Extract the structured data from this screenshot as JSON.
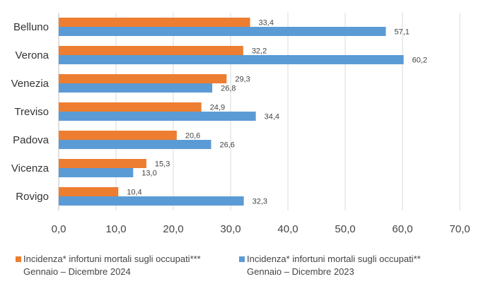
{
  "chart_data": {
    "type": "bar",
    "orientation": "horizontal",
    "categories": [
      "Belluno",
      "Verona",
      "Venezia",
      "Treviso",
      "Padova",
      "Vicenza",
      "Rovigo"
    ],
    "series": [
      {
        "name": "Incidenza* infortuni mortali  sugli occupati***",
        "period": "Gennaio – Dicembre 2024",
        "color": "#ED7D31",
        "values": [
          33.4,
          32.2,
          29.3,
          24.9,
          20.6,
          15.3,
          10.4
        ],
        "labels": [
          "33,4",
          "32,2",
          "29,3",
          "24,9",
          "20,6",
          "15,3",
          "10,4"
        ]
      },
      {
        "name": "Incidenza* infortuni mortali  sugli occupati**",
        "period": "Gennaio – Dicembre 2023",
        "color": "#5B9BD5",
        "values": [
          57.1,
          60.2,
          26.8,
          34.4,
          26.6,
          13.0,
          32.3
        ],
        "labels": [
          "57,1",
          "60,2",
          "26,8",
          "34,4",
          "26,6",
          "13,0",
          "32,3"
        ]
      }
    ],
    "xlim": [
      0,
      70
    ],
    "xticks": [
      0,
      10,
      20,
      30,
      40,
      50,
      60,
      70
    ],
    "xtick_labels": [
      "0,0",
      "10,0",
      "20,0",
      "30,0",
      "40,0",
      "50,0",
      "60,0",
      "70,0"
    ],
    "grid": true,
    "legend_position": "bottom"
  }
}
